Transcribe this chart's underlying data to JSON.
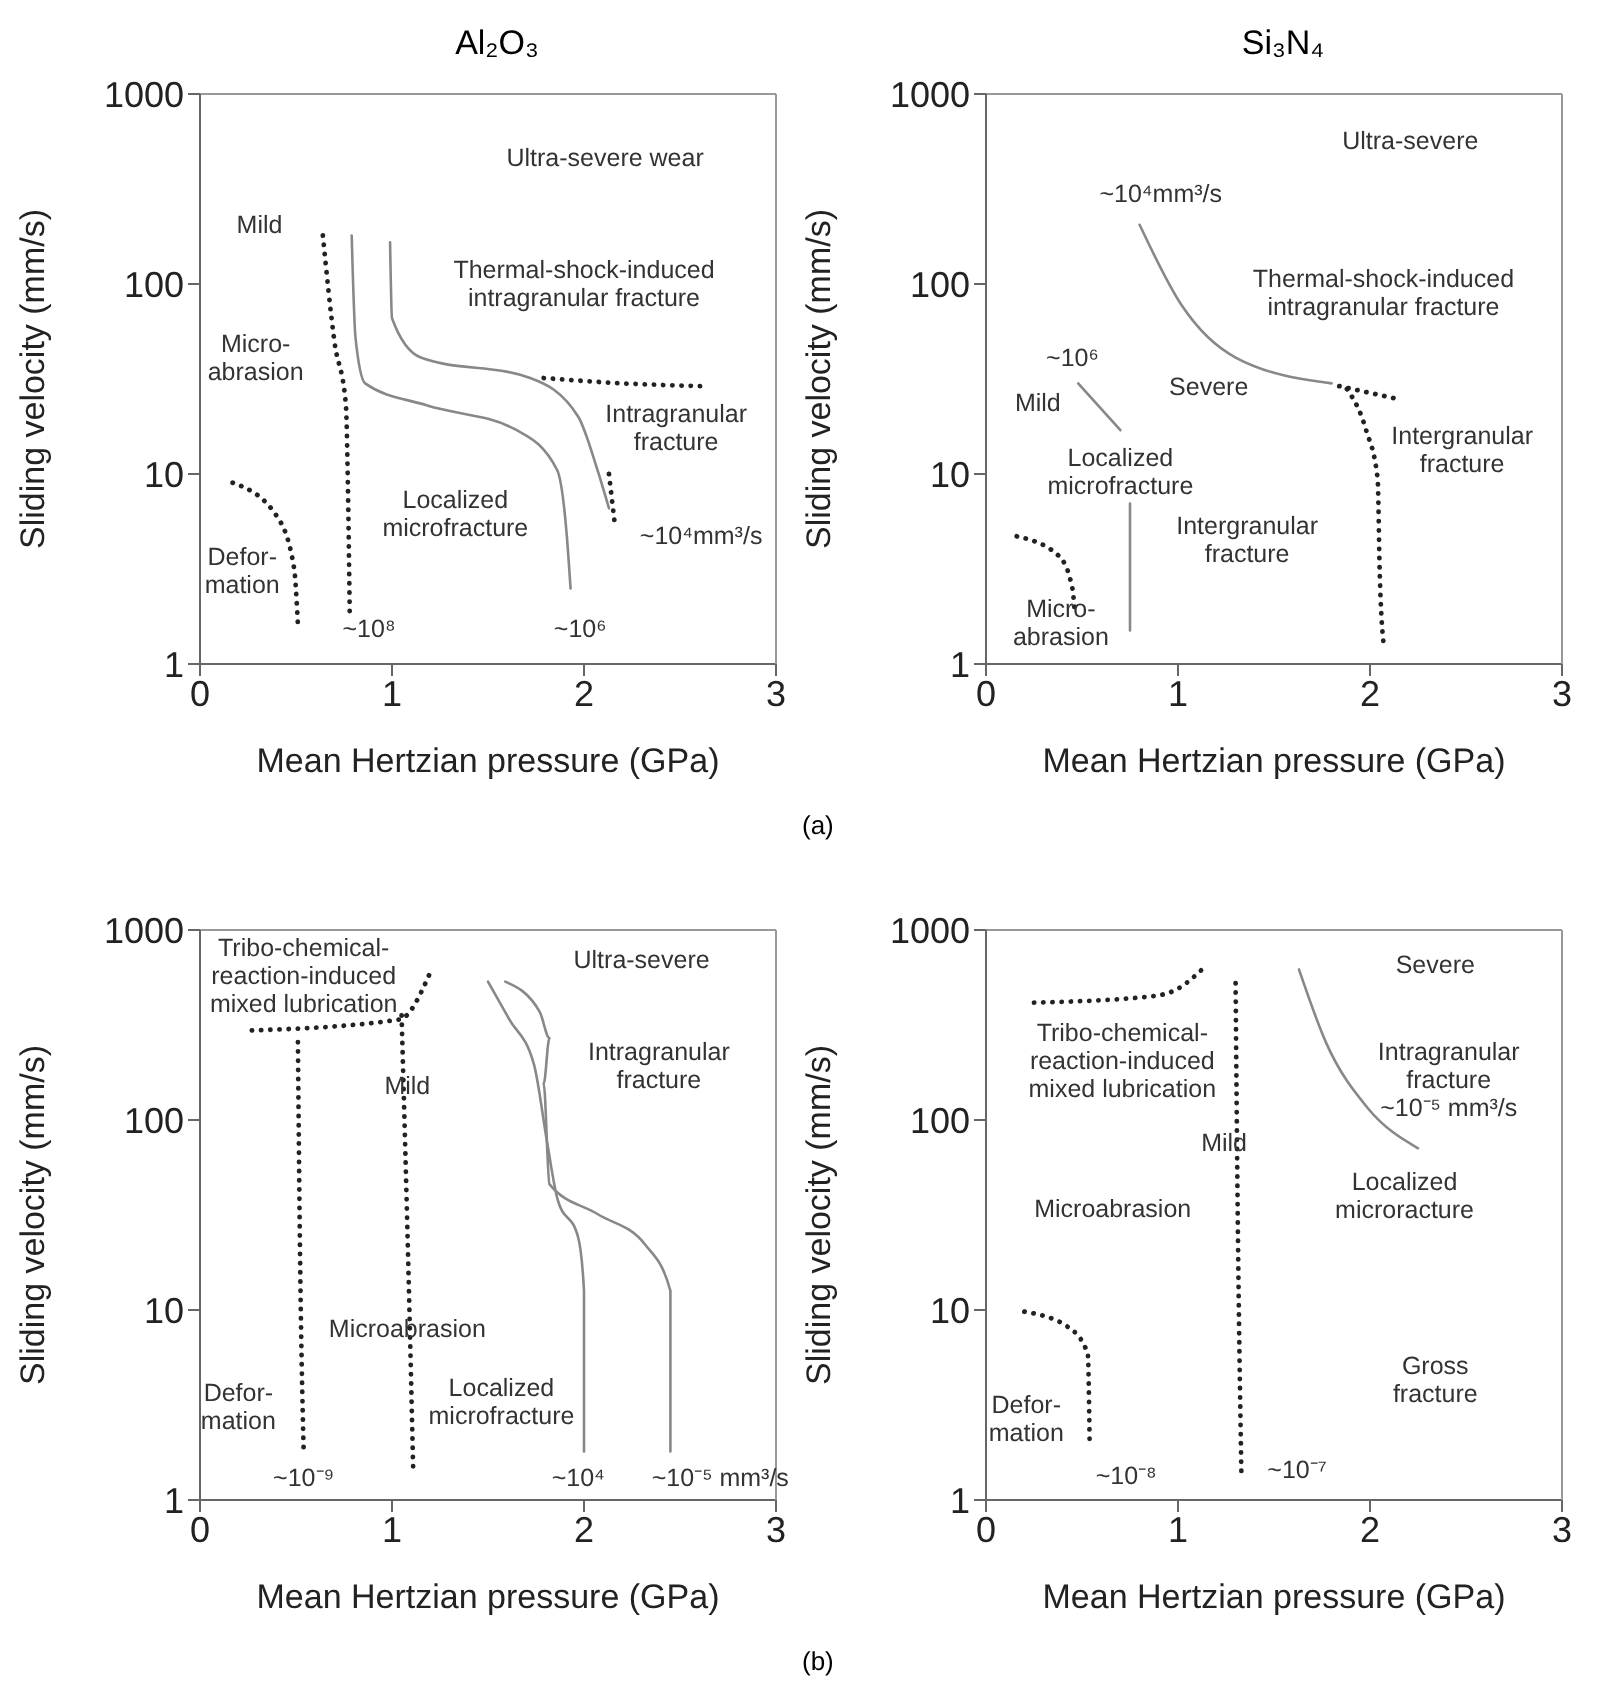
{
  "chart_data": [
    {
      "type": "line",
      "title": "Al₂O₃",
      "xlabel": "Mean Hertzian pressure (GPa)",
      "ylabel": "Sliding  velocity (mm/s)",
      "xlim": [
        0,
        3
      ],
      "ylim": [
        1,
        1000
      ],
      "xticks": [
        0,
        1,
        2,
        3
      ],
      "yticks": [
        1,
        10,
        100,
        1000
      ],
      "log": "y",
      "marker": "none",
      "series": [
        {
          "color": "#222222",
          "line_style": "dotted",
          "x": [
            0.17,
            0.4,
            0.49,
            0.51
          ],
          "values": [
            9,
            6,
            3.2,
            1.6
          ]
        },
        {
          "color": "#222222",
          "line_style": "dotted",
          "x": [
            0.64,
            0.7,
            0.76,
            0.77,
            0.78
          ],
          "values": [
            180,
            50,
            23,
            9,
            1.8
          ]
        },
        {
          "color": "#888888",
          "line_style": "solid",
          "x": [
            0.79,
            0.81,
            0.86,
            1.18,
            1.65,
            1.86,
            1.91,
            1.93
          ],
          "values": [
            180,
            52,
            30,
            23,
            17,
            10.5,
            4.8,
            2.5
          ]
        },
        {
          "color": "#888888",
          "line_style": "solid",
          "x": [
            0.99,
            1.0,
            1.15,
            1.72,
            1.97,
            2.07,
            2.13
          ],
          "values": [
            166,
            66,
            41,
            32,
            20,
            10.5,
            6.6
          ]
        },
        {
          "color": "#222222",
          "line_style": "dotted",
          "x": [
            1.79,
            2.2,
            2.61
          ],
          "values": [
            32,
            30,
            29
          ]
        },
        {
          "color": "#222222",
          "line_style": "dotted",
          "x": [
            2.13,
            2.16
          ],
          "values": [
            10,
            5.5
          ]
        }
      ],
      "annotations": [
        "Ultra-severe wear",
        "Mild",
        "Micro-\nabrasion",
        "Thermal-shock-induced\nintragranular fracture",
        "Intragranular\nfracture",
        "Localized\nmicrofracture",
        "Defor-\nmation",
        "~10⁸",
        "~10⁶",
        "~10⁴mm³/s"
      ]
    },
    {
      "type": "line",
      "title": "Si₃N₄",
      "xlabel": "Mean Hertzian pressure (GPa)",
      "ylabel": "Sliding  velocity (mm/s)",
      "xlim": [
        0,
        3
      ],
      "ylim": [
        1,
        1000
      ],
      "xticks": [
        0,
        1,
        2,
        3
      ],
      "yticks": [
        1,
        10,
        100,
        1000
      ],
      "log": "y",
      "marker": "none",
      "series": [
        {
          "color": "#888888",
          "line_style": "solid",
          "x": [
            0.8,
            1.02,
            1.3,
            1.8
          ],
          "values": [
            205,
            77,
            41,
            30
          ]
        },
        {
          "color": "#222222",
          "line_style": "dotted",
          "x": [
            1.84,
            2.13
          ],
          "values": [
            29,
            25
          ]
        },
        {
          "color": "#222222",
          "line_style": "dotted",
          "x": [
            1.88,
            1.98,
            2.04,
            2.05,
            2.07
          ],
          "values": [
            28,
            17,
            9.4,
            3.2,
            1.3
          ]
        },
        {
          "color": "#888888",
          "line_style": "solid",
          "x": [
            0.48,
            0.7
          ],
          "values": [
            30,
            17
          ]
        },
        {
          "color": "#888888",
          "line_style": "solid",
          "x": [
            0.75,
            0.75
          ],
          "values": [
            7,
            1.5
          ]
        },
        {
          "color": "#222222",
          "line_style": "dotted",
          "x": [
            0.16,
            0.38,
            0.45,
            0.46
          ],
          "values": [
            4.7,
            3.7,
            2.5,
            2
          ]
        }
      ],
      "annotations": [
        "Ultra-severe",
        "~10⁴mm³/s",
        "Thermal-shock-induced\nintragranular fracture",
        "~10⁶",
        "Mild",
        "Severe",
        "Localized\nmicrofracture",
        "Intergranular\nfracture",
        "Intergranular\nfracture",
        "Micro-\nabrasion",
        "(a)"
      ]
    },
    {
      "type": "line",
      "xlabel": "Mean Hertzian pressure (GPa)",
      "ylabel": "Sliding  velocity (mm/s)",
      "xlim": [
        0,
        3
      ],
      "ylim": [
        1,
        1000
      ],
      "xticks": [
        0,
        1,
        2,
        3
      ],
      "yticks": [
        1,
        10,
        100,
        1000
      ],
      "log": "y",
      "marker": "none",
      "series": [
        {
          "color": "#222222",
          "line_style": "dotted",
          "x": [
            0.27,
            1.04,
            1.2
          ],
          "values": [
            296,
            338,
            600
          ]
        },
        {
          "color": "#222222",
          "line_style": "dotted",
          "x": [
            0.51,
            0.52,
            0.54
          ],
          "values": [
            257,
            24,
            1.8
          ]
        },
        {
          "color": "#222222",
          "line_style": "dotted",
          "x": [
            1.05,
            1.09,
            1.11
          ],
          "values": [
            355,
            10.7,
            1.5
          ]
        },
        {
          "color": "#888888",
          "line_style": "solid",
          "x": [
            1.5,
            1.61,
            1.74,
            1.81,
            1.86,
            1.97,
            2.0,
            2.0
          ],
          "values": [
            535,
            340,
            195,
            74,
            39,
            24,
            12.6,
            1.8
          ]
        },
        {
          "color": "#888888",
          "line_style": "solid",
          "x": [
            1.59,
            1.77,
            1.82,
            1.79,
            1.82,
            2.07,
            2.32,
            2.45,
            2.45
          ],
          "values": [
            535,
            370,
            270,
            155,
            46,
            32,
            22,
            12.6,
            1.8
          ]
        }
      ],
      "annotations": [
        "Tribo-chemical-\nreaction-induced\nmixed lubrication",
        "Ultra-severe",
        "Mild",
        "Intragranular\nfracture",
        "Microabrasion",
        "Defor-\nmation",
        "Localized\nmicrofracture",
        "~10⁻⁹",
        "~10⁴",
        "~10⁻⁵ mm³/s"
      ]
    },
    {
      "type": "line",
      "xlabel": "Mean Hertzian pressure (GPa)",
      "ylabel": "Sliding  velocity (mm/s)",
      "xlim": [
        0,
        3
      ],
      "ylim": [
        1,
        1000
      ],
      "xticks": [
        0,
        1,
        2,
        3
      ],
      "yticks": [
        1,
        10,
        100,
        1000
      ],
      "log": "y",
      "marker": "none",
      "series": [
        {
          "color": "#222222",
          "line_style": "dotted",
          "x": [
            0.25,
            0.85,
            0.99,
            1.14
          ],
          "values": [
            415,
            446,
            485,
            640
          ]
        },
        {
          "color": "#222222",
          "line_style": "dotted",
          "x": [
            1.3,
            1.31,
            1.33
          ],
          "values": [
            525,
            40,
            1.4
          ]
        },
        {
          "color": "#888888",
          "line_style": "solid",
          "x": [
            1.63,
            1.77,
            1.99,
            2.25
          ],
          "values": [
            620,
            257,
            115,
            71
          ]
        },
        {
          "color": "#222222",
          "line_style": "dotted",
          "x": [
            0.2,
            0.43,
            0.53,
            0.54
          ],
          "values": [
            9.8,
            8.1,
            5.9,
            1.9
          ]
        }
      ],
      "annotations": [
        "Severe",
        "Tribo-chemical-\nreaction-induced\nmixed lubrication",
        "Intragranular\nfracture\n~10⁻⁵ mm³/s",
        "Mild",
        "Microabrasion",
        "Localized\nmicroracture",
        "Gross\nfracture",
        "Defor-\nmation",
        "~10⁻⁸",
        "~10⁻⁷",
        "(b)"
      ]
    }
  ]
}
